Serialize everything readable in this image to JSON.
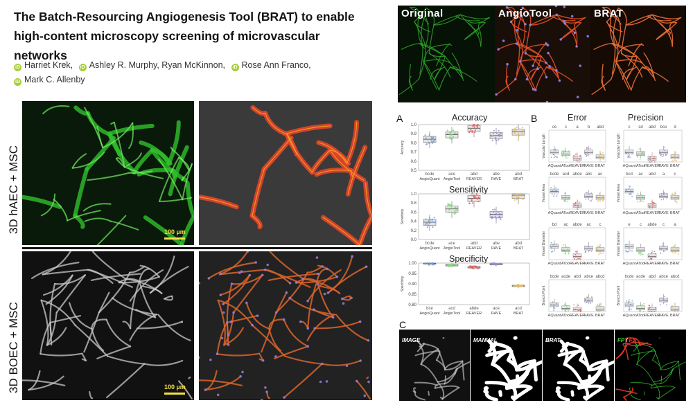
{
  "paper": {
    "title": "The Batch-Resourcing Angiogenesis Tool (BRAT) to enable high-content microscopy screening of microvascular networks",
    "orcid_icon": "iD",
    "authors": [
      "Harriet Krek,",
      "Ashley R. Murphy, Ryan McKinnon,",
      "Rose Ann Franco,",
      "Mark C. Allenby"
    ]
  },
  "left_figure": {
    "row_labels": [
      "3D hAEC + MSC",
      "3D BOEC + MSC"
    ],
    "scale_label": "100 µm",
    "colors": {
      "green": "#2fbf2a",
      "overlay": "#e2452b",
      "gray": "#c8c8c8"
    }
  },
  "top_strip": {
    "labels": [
      "Original",
      "AngioTool",
      "BRAT"
    ]
  },
  "panel_a": {
    "letter": "A",
    "categories": [
      "AngioQuant",
      "AngioTool",
      "REAVER",
      "RAVE",
      "BRAT"
    ],
    "plots": [
      {
        "title": "Accuracy",
        "ylabel": "Accuracy",
        "ticks": [
          "1.0",
          "0.9",
          "0.8",
          "0.7",
          "0.6",
          "0.5"
        ],
        "ylim": [
          0.5,
          1.0
        ],
        "medians": [
          0.84,
          0.89,
          0.96,
          0.88,
          0.92
        ],
        "sig": [
          "bcde",
          "ace",
          "abd",
          "abe",
          "abd"
        ]
      },
      {
        "title": "Sensitivity",
        "ylabel": "Sensitivity",
        "ticks": [
          "1.0",
          "0.8",
          "0.6",
          "0.4",
          "0.2",
          "0.0"
        ],
        "ylim": [
          0.0,
          1.0
        ],
        "medians": [
          0.38,
          0.67,
          0.9,
          0.55,
          0.97
        ],
        "sig": [
          "bcde",
          "ace",
          "abd",
          "abe",
          "abd"
        ]
      },
      {
        "title": "Specificity",
        "ylabel": "Specificity",
        "ticks": [
          "1.00",
          "0.95",
          "0.90",
          "0.85",
          "0.80"
        ],
        "ylim": [
          0.8,
          1.0
        ],
        "medians": [
          0.998,
          0.99,
          0.98,
          0.995,
          0.89
        ],
        "sig": [
          "bce",
          "acd",
          "abde",
          "ace",
          "acd"
        ]
      }
    ]
  },
  "panel_b": {
    "letter": "B",
    "categories": [
      "AQuant",
      "ATool",
      "REAVER",
      "RAVE",
      "BRAT"
    ],
    "columns": [
      "Error",
      "Precision"
    ],
    "rows": [
      {
        "ylabel": "Vascular Length",
        "err_sig": [
          "ce",
          "c",
          "a",
          "b",
          "abd"
        ],
        "prec_sig": [
          "c",
          "cd",
          "abd",
          "bce",
          "d"
        ]
      },
      {
        "ylabel": "Vessel Area",
        "err_sig": [
          "bcde",
          "acd",
          "abde",
          "abc",
          "ac"
        ],
        "prec_sig": [
          "bcd",
          "ac",
          "abd",
          "a",
          "c"
        ]
      },
      {
        "ylabel": "Vessel Diameter",
        "err_sig": [
          "bd",
          "ac",
          "abde",
          "ac",
          "c"
        ],
        "prec_sig": [
          "e",
          "c",
          "abde",
          "c",
          "a"
        ]
      },
      {
        "ylabel": "Branch Point",
        "err_sig": [
          "bcde",
          "acde",
          "abd",
          "abce",
          "abcd"
        ],
        "prec_sig": [
          "bcde",
          "acde",
          "abd",
          "abce",
          "abcd"
        ]
      }
    ]
  },
  "panel_c": {
    "letter": "C",
    "labels": [
      "IMAGE",
      "MANUAL",
      "BRAT"
    ],
    "fp_label": "FP",
    "slash": "/",
    "fn_label": "FN"
  }
}
